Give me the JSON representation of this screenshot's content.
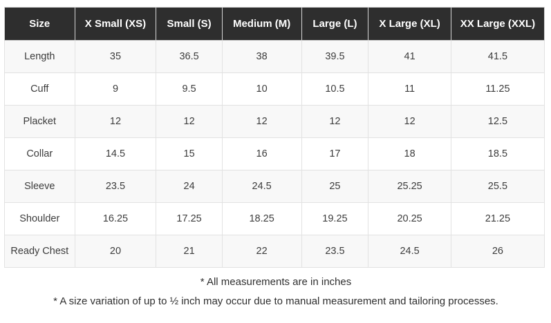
{
  "chart_data": {
    "type": "table",
    "columns": [
      "Size",
      "X Small (XS)",
      "Small (S)",
      "Medium (M)",
      "Large (L)",
      "X Large (XL)",
      "XX Large (XXL)"
    ],
    "rows": [
      {
        "label": "Length",
        "values": [
          "35",
          "36.5",
          "38",
          "39.5",
          "41",
          "41.5"
        ]
      },
      {
        "label": "Cuff",
        "values": [
          "9",
          "9.5",
          "10",
          "10.5",
          "11",
          "11.25"
        ]
      },
      {
        "label": "Placket",
        "values": [
          "12",
          "12",
          "12",
          "12",
          "12",
          "12.5"
        ]
      },
      {
        "label": "Collar",
        "values": [
          "14.5",
          "15",
          "16",
          "17",
          "18",
          "18.5"
        ]
      },
      {
        "label": "Sleeve",
        "values": [
          "23.5",
          "24",
          "24.5",
          "25",
          "25.25",
          "25.5"
        ]
      },
      {
        "label": "Shoulder",
        "values": [
          "16.25",
          "17.25",
          "18.25",
          "19.25",
          "20.25",
          "21.25"
        ]
      },
      {
        "label": "Ready Chest",
        "values": [
          "20",
          "21",
          "22",
          "23.5",
          "24.5",
          "26"
        ]
      }
    ]
  },
  "notes": [
    "* All measurements are in inches",
    "* A size variation of up to ½ inch may occur due to manual measurement and tailoring processes."
  ],
  "colors": {
    "header_bg": "#2e2e2e",
    "header_text": "#ffffff",
    "row_alt_bg": "#f8f8f8",
    "row_bg": "#ffffff",
    "border": "#e2e2e2",
    "cell_text": "#3c3c3c",
    "note_text": "#2f2f2f"
  }
}
